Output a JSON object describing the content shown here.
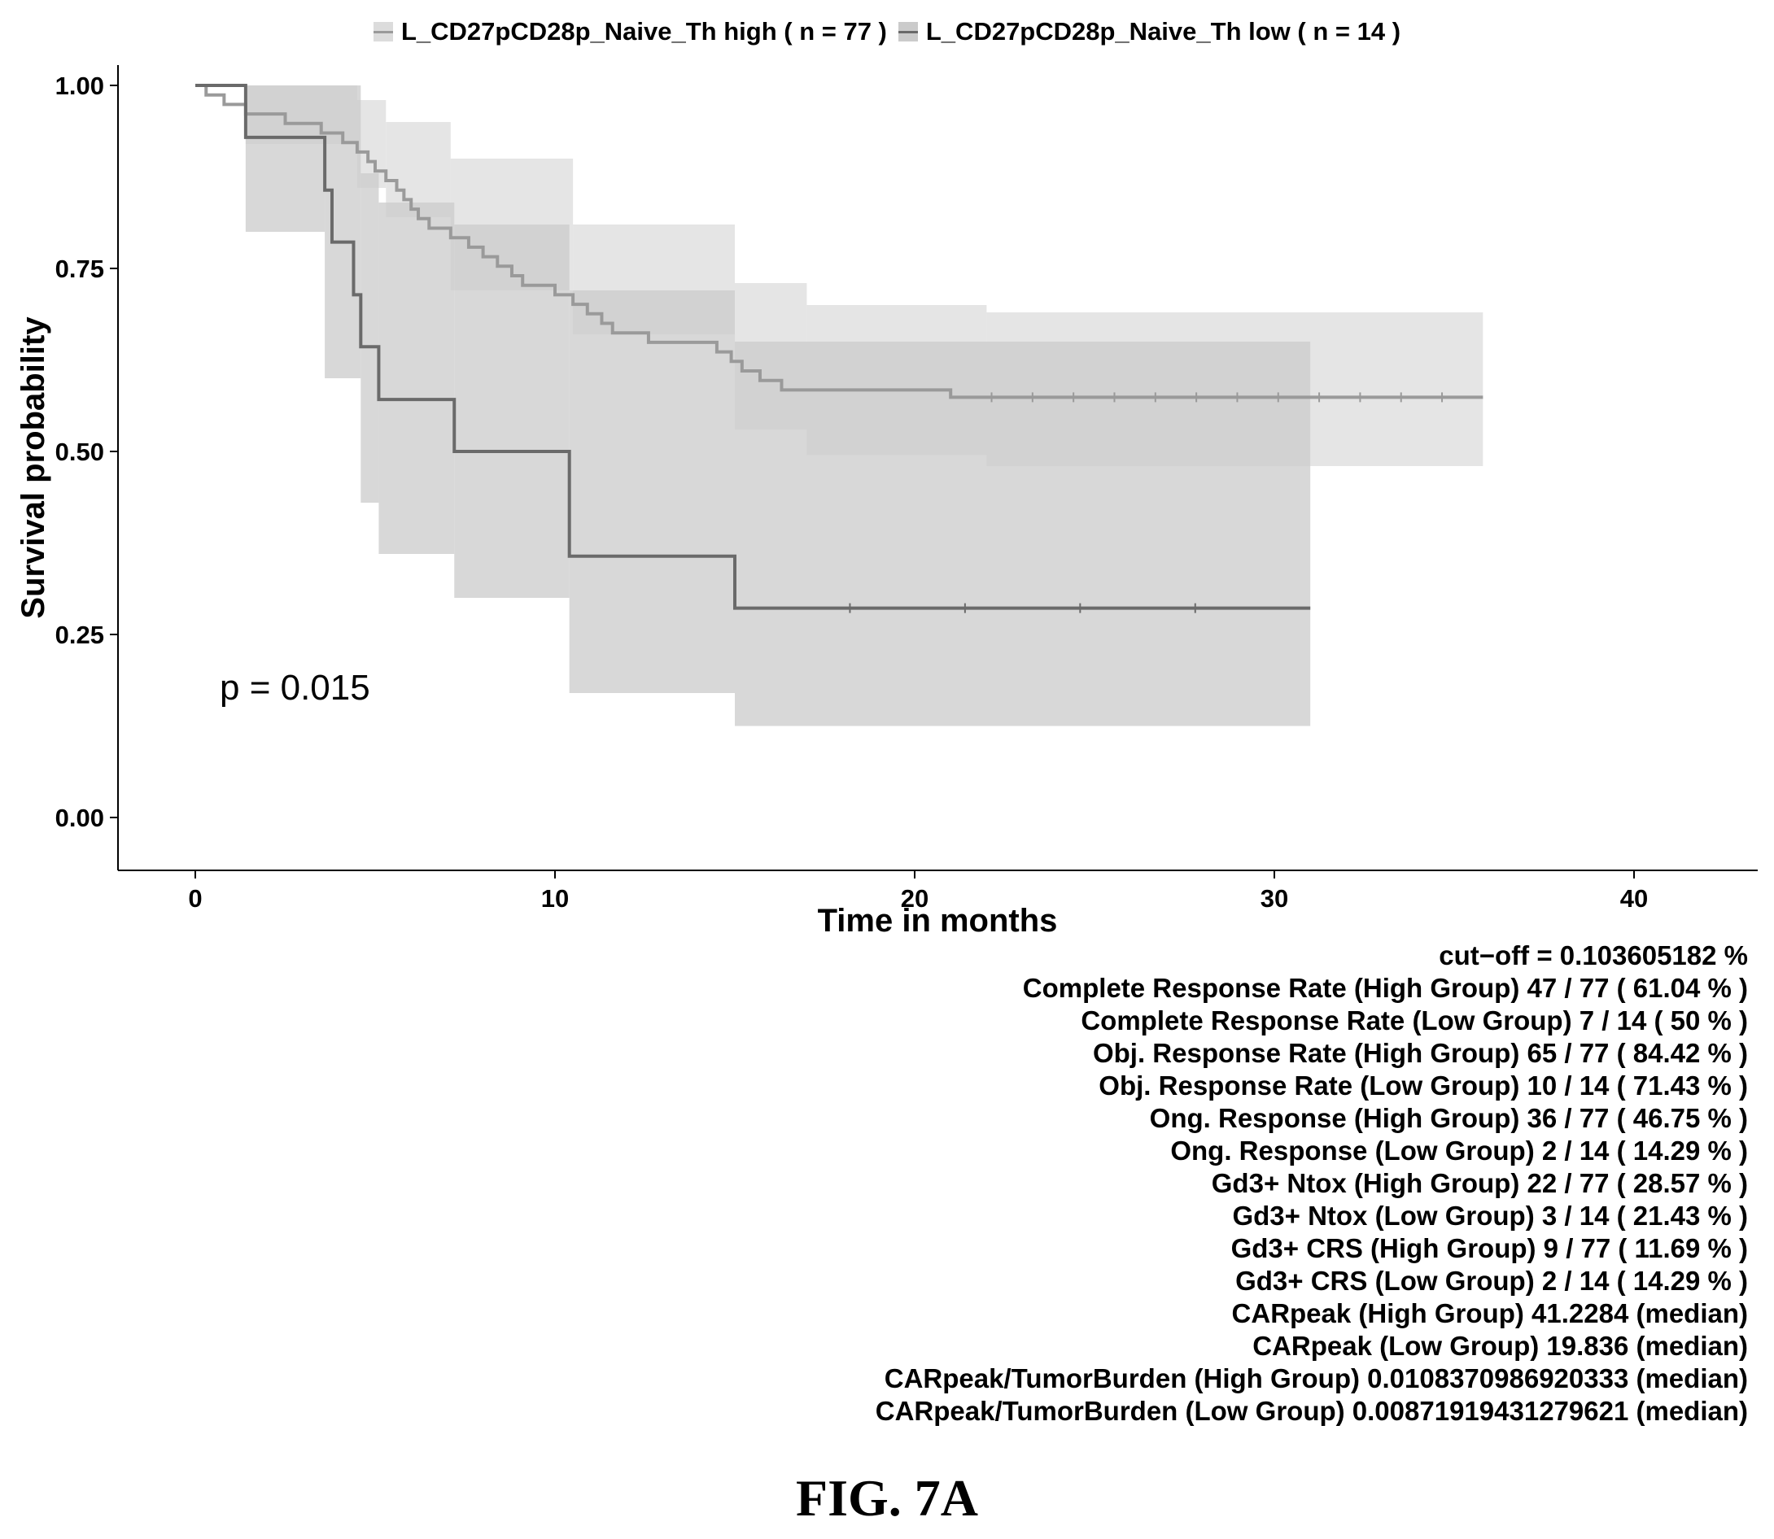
{
  "figure_label": "FIG. 7A",
  "colors": {
    "high_line": "#9a9a9a",
    "low_line": "#6a6a6a",
    "high_band": "#dcdcdc",
    "low_band": "#cbcbcb",
    "axis": "#000000"
  },
  "chart_data": {
    "type": "line",
    "subtype": "kaplan-meier",
    "xlabel": "Time in months",
    "ylabel": "Survival probability",
    "xlim": [
      0,
      42
    ],
    "ylim": [
      0,
      1.05
    ],
    "xticks": [
      0,
      10,
      20,
      30,
      40
    ],
    "yticks": [
      0.0,
      0.25,
      0.5,
      0.75,
      1.0
    ],
    "ytick_labels": [
      "0.00",
      "0.25",
      "0.50",
      "0.75",
      "1.00"
    ],
    "grid": false,
    "legend_position": "top",
    "annotation": "p = 0.015",
    "series": [
      {
        "name": "L_CD27pCD28p_Naive_Th high ( n = 77 )",
        "steps": [
          [
            0,
            1.0
          ],
          [
            0.3,
            0.987
          ],
          [
            0.8,
            0.974
          ],
          [
            1.4,
            0.961
          ],
          [
            2.5,
            0.948
          ],
          [
            3.5,
            0.935
          ],
          [
            4.1,
            0.922
          ],
          [
            4.5,
            0.909
          ],
          [
            4.8,
            0.896
          ],
          [
            5.0,
            0.883
          ],
          [
            5.3,
            0.87
          ],
          [
            5.6,
            0.857
          ],
          [
            5.8,
            0.844
          ],
          [
            6.0,
            0.831
          ],
          [
            6.2,
            0.818
          ],
          [
            6.5,
            0.805
          ],
          [
            7.1,
            0.792
          ],
          [
            7.6,
            0.779
          ],
          [
            8.0,
            0.766
          ],
          [
            8.4,
            0.753
          ],
          [
            8.8,
            0.74
          ],
          [
            9.1,
            0.727
          ],
          [
            10.0,
            0.714
          ],
          [
            10.5,
            0.701
          ],
          [
            10.9,
            0.688
          ],
          [
            11.3,
            0.675
          ],
          [
            11.6,
            0.662
          ],
          [
            12.6,
            0.649
          ],
          [
            14.5,
            0.636
          ],
          [
            14.9,
            0.623
          ],
          [
            15.2,
            0.61
          ],
          [
            15.7,
            0.597
          ],
          [
            16.3,
            0.584
          ],
          [
            21.0,
            0.574
          ],
          [
            35.8,
            0.574
          ]
        ],
        "ci_steps": [
          [
            0,
            1.0,
            1.0
          ],
          [
            1.4,
            1.0,
            0.92
          ],
          [
            4.5,
            0.98,
            0.86
          ],
          [
            5.3,
            0.95,
            0.82
          ],
          [
            7.1,
            0.9,
            0.72
          ],
          [
            10.5,
            0.81,
            0.66
          ],
          [
            15.0,
            0.73,
            0.53
          ],
          [
            17.0,
            0.7,
            0.495
          ],
          [
            22.0,
            0.69,
            0.48
          ],
          [
            35.8,
            0.69,
            0.47
          ]
        ]
      },
      {
        "name": "L_CD27pCD28p_Naive_Th low ( n = 14 )",
        "steps": [
          [
            0,
            1.0
          ],
          [
            1.4,
            0.929
          ],
          [
            3.6,
            0.857
          ],
          [
            3.8,
            0.786
          ],
          [
            4.4,
            0.714
          ],
          [
            4.6,
            0.643
          ],
          [
            5.1,
            0.571
          ],
          [
            7.2,
            0.5
          ],
          [
            10.4,
            0.357
          ],
          [
            15.0,
            0.286
          ],
          [
            31.0,
            0.286
          ]
        ],
        "ci_steps": [
          [
            1.4,
            1.0,
            0.8
          ],
          [
            3.6,
            1.0,
            0.6
          ],
          [
            4.6,
            0.88,
            0.43
          ],
          [
            5.1,
            0.84,
            0.36
          ],
          [
            7.2,
            0.81,
            0.3
          ],
          [
            10.4,
            0.72,
            0.17
          ],
          [
            15.0,
            0.65,
            0.125
          ],
          [
            31.0,
            0.65,
            0.125
          ]
        ]
      }
    ]
  },
  "stats": [
    "cut−off = 0.103605182 %",
    "Complete Response Rate (High Group) 47 / 77 ( 61.04 % )",
    "Complete Response Rate (Low Group) 7 / 14 ( 50 % )",
    "Obj. Response Rate (High Group) 65 / 77 ( 84.42 % )",
    "Obj. Response Rate (Low Group) 10 / 14 ( 71.43 % )",
    "Ong. Response (High Group) 36 / 77 ( 46.75 % )",
    "Ong. Response (Low Group) 2 / 14 ( 14.29 % )",
    "Gd3+ Ntox (High Group) 22 / 77 ( 28.57 % )",
    "Gd3+ Ntox (Low Group) 3 / 14 ( 21.43 % )",
    "Gd3+ CRS (High Group) 9 / 77 ( 11.69 % )",
    "Gd3+ CRS (Low Group) 2 / 14 ( 14.29 % )",
    "CARpeak (High Group) 41.2284 (median)",
    "CARpeak (Low Group) 19.836 (median)",
    "CARpeak/TumorBurden (High Group) 0.0108370986920333 (median)",
    "CARpeak/TumorBurden (Low Group) 0.00871919431279621 (median)"
  ]
}
